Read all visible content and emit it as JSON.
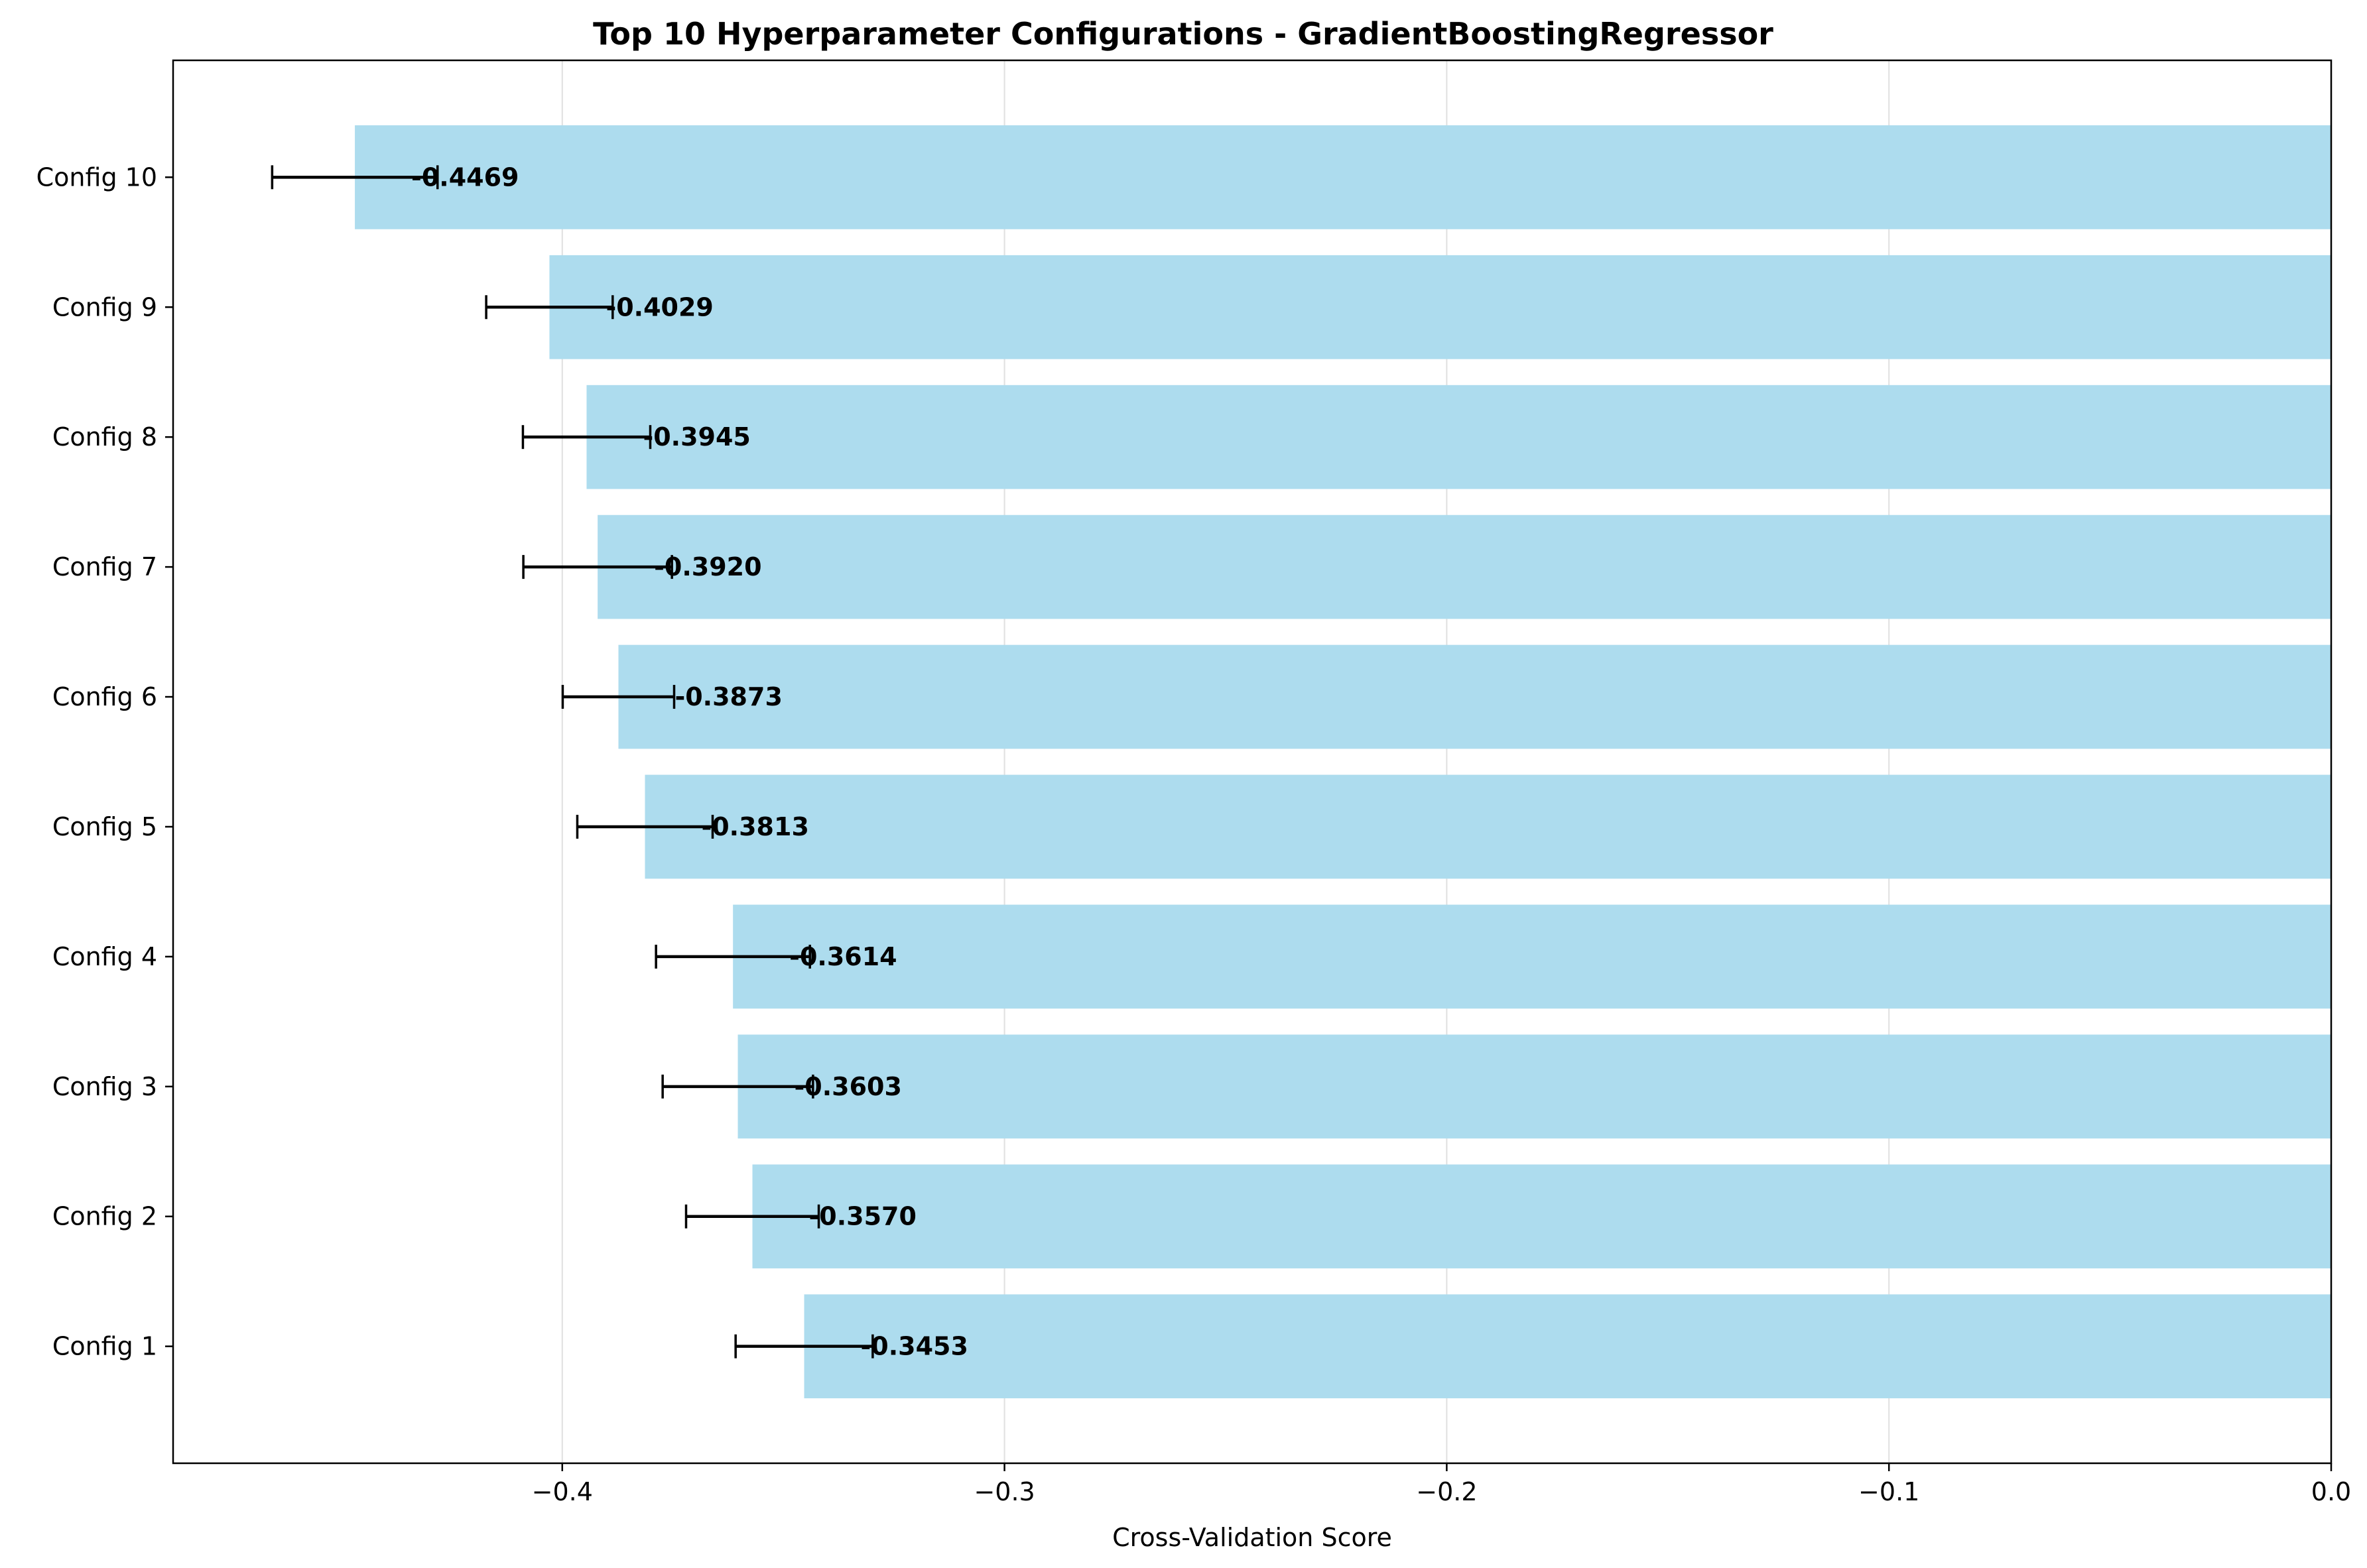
{
  "chart_data": {
    "type": "bar",
    "orientation": "horizontal",
    "title": "Top 10 Hyperparameter Configurations - GradientBoostingRegressor",
    "xlabel": "Cross-Validation Score",
    "ylabel": "",
    "xlim": [
      -0.488,
      0.0
    ],
    "x_ticks": [
      -0.4,
      -0.3,
      -0.2,
      -0.1,
      0.0
    ],
    "x_tick_labels": [
      "−0.4",
      "−0.3",
      "−0.2",
      "−0.1",
      "0.0"
    ],
    "grid": "vertical",
    "categories": [
      "Config 1",
      "Config 2",
      "Config 3",
      "Config 4",
      "Config 5",
      "Config 6",
      "Config 7",
      "Config 8",
      "Config 9",
      "Config 10"
    ],
    "values": [
      -0.3453,
      -0.357,
      -0.3603,
      -0.3614,
      -0.3813,
      -0.3873,
      -0.392,
      -0.3945,
      -0.4029,
      -0.4469
    ],
    "errors": [
      0.0155,
      0.015,
      0.017,
      0.0174,
      0.0153,
      0.0126,
      0.0168,
      0.0144,
      0.0143,
      0.0187
    ],
    "data_labels": [
      "-0.3453",
      "-0.3570",
      "-0.3603",
      "-0.3614",
      "-0.3813",
      "-0.3873",
      "-0.3920",
      "-0.3945",
      "-0.4029",
      "-0.4469"
    ],
    "colors": {
      "bar": "#ADDCEE",
      "error": "#000000",
      "grid": "#E0E0E0",
      "axis": "#000000"
    }
  }
}
